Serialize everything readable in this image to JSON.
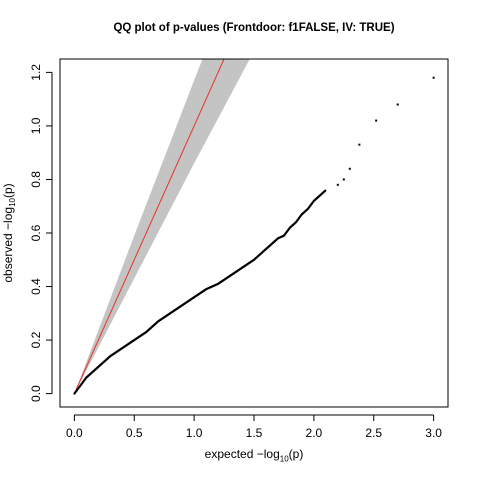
{
  "chart_data": {
    "type": "scatter",
    "title": "QQ plot of p-values (Frontdoor: f1FALSE, IV: TRUE)",
    "xlabel": {
      "prefix": "expected ",
      "text": "−log",
      "sub": "10",
      "suffix": "(p)"
    },
    "ylabel": {
      "prefix": "observed ",
      "text": "−log",
      "sub": "10",
      "suffix": "(p)"
    },
    "xlim": [
      -0.12,
      3.12
    ],
    "ylim": [
      -0.05,
      1.25
    ],
    "x_ticks": [
      0.0,
      0.5,
      1.0,
      1.5,
      2.0,
      2.5,
      3.0
    ],
    "x_tick_labels": [
      "0.0",
      "0.5",
      "1.0",
      "1.5",
      "2.0",
      "2.5",
      "3.0"
    ],
    "y_ticks": [
      0.0,
      0.2,
      0.4,
      0.6,
      0.8,
      1.0,
      1.2
    ],
    "y_tick_labels": [
      "0.0",
      "0.2",
      "0.4",
      "0.6",
      "0.8",
      "1.0",
      "1.2"
    ],
    "reference_line": {
      "slope": 1,
      "intercept": 0,
      "color": "#e8332a"
    },
    "confidence_band": {
      "color": "#c4c4c4",
      "points": [
        [
          0.0,
          0.0,
          0.0
        ],
        [
          0.5,
          0.43,
          0.59
        ],
        [
          1.0,
          0.86,
          1.17
        ],
        [
          1.5,
          1.28,
          1.74
        ]
      ]
    },
    "point_color": "#000000",
    "points": [
      [
        0.0,
        0.0
      ],
      [
        0.05,
        0.03
      ],
      [
        0.1,
        0.06
      ],
      [
        0.15,
        0.08
      ],
      [
        0.2,
        0.1
      ],
      [
        0.3,
        0.14
      ],
      [
        0.4,
        0.17
      ],
      [
        0.5,
        0.2
      ],
      [
        0.6,
        0.23
      ],
      [
        0.7,
        0.27
      ],
      [
        0.8,
        0.3
      ],
      [
        0.9,
        0.33
      ],
      [
        1.0,
        0.36
      ],
      [
        1.1,
        0.39
      ],
      [
        1.2,
        0.41
      ],
      [
        1.3,
        0.44
      ],
      [
        1.4,
        0.47
      ],
      [
        1.5,
        0.5
      ],
      [
        1.6,
        0.54
      ],
      [
        1.7,
        0.58
      ],
      [
        1.75,
        0.59
      ],
      [
        1.8,
        0.62
      ],
      [
        1.85,
        0.64
      ],
      [
        1.9,
        0.67
      ],
      [
        1.95,
        0.69
      ],
      [
        2.0,
        0.72
      ],
      [
        2.05,
        0.74
      ],
      [
        2.1,
        0.76
      ],
      [
        2.2,
        0.78
      ],
      [
        2.25,
        0.8
      ],
      [
        2.3,
        0.84
      ],
      [
        2.38,
        0.93
      ],
      [
        2.52,
        1.02
      ],
      [
        2.7,
        1.08
      ],
      [
        3.0,
        1.18
      ]
    ]
  }
}
